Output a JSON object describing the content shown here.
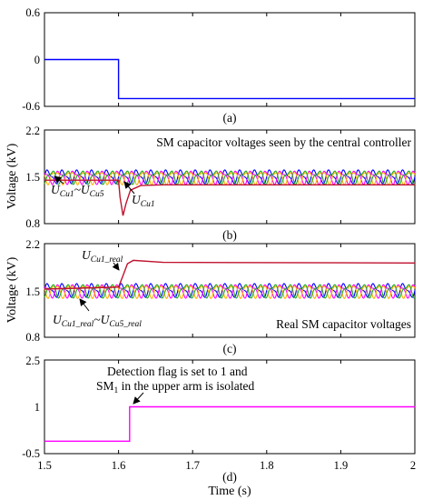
{
  "colors": {
    "flag_a": "#0000ff",
    "flag_d": "#ff00ff",
    "ucu1": "#c0122f",
    "ripple": [
      "#0000ff",
      "#ff00ff",
      "#ffb000",
      "#22aa22"
    ]
  },
  "chart_data": [
    {
      "type": "line",
      "panel_label": "(a)",
      "xlim": [
        1.5,
        2.0
      ],
      "ylim": [
        -0.6,
        0.6
      ],
      "yticks": [
        "0.6",
        "0",
        "-0.6"
      ],
      "series": [
        {
          "x": [
            1.5,
            1.6,
            1.6,
            2.0
          ],
          "y": [
            0,
            0,
            -0.5,
            -0.5
          ]
        }
      ]
    },
    {
      "type": "line",
      "panel_label": "(b)",
      "ylabel": "Voltage (kV)",
      "ylim": [
        0.8,
        2.2
      ],
      "yticks": [
        "2.2",
        "1.5",
        "0.8"
      ],
      "annotations": {
        "title": "SM capacitor voltages seen by the central controller",
        "range_main": "U",
        "range_sub1": "Cu1",
        "range_sep": "~",
        "range_main2": "U",
        "range_sub2": "Cu5",
        "single_main": "U",
        "single_sub": "Cu1"
      },
      "nominal": 1.5,
      "ripple_amplitude": 0.12,
      "ucu1": {
        "x": [
          1.5,
          1.6,
          1.602,
          1.606,
          1.61,
          1.616,
          1.63,
          1.66,
          2.0
        ],
        "y": [
          1.45,
          1.45,
          1.2,
          0.92,
          1.1,
          1.3,
          1.37,
          1.38,
          1.38
        ]
      }
    },
    {
      "type": "line",
      "panel_label": "(c)",
      "ylabel": "Voltage (kV)",
      "ylim": [
        0.8,
        2.2
      ],
      "yticks": [
        "2.2",
        "1.5",
        "0.8"
      ],
      "annotations": {
        "title": "Real SM capacitor voltages",
        "single_main": "U",
        "single_sub": "Cu1_real",
        "range_main": "U",
        "range_sub1": "Cu1_real",
        "range_sep": "~",
        "range_main2": "U",
        "range_sub2": "Cu5_real"
      },
      "nominal": 1.5,
      "ripple_amplitude": 0.12,
      "ucu1_real": {
        "x": [
          1.5,
          1.6,
          1.606,
          1.612,
          1.62,
          1.66,
          2.0
        ],
        "y": [
          1.52,
          1.55,
          1.72,
          1.9,
          1.95,
          1.92,
          1.91
        ]
      }
    },
    {
      "type": "line",
      "panel_label": "(d)",
      "xlabel": "Time (s)",
      "xlim": [
        1.5,
        2.0
      ],
      "xticks": [
        "1.5",
        "1.6",
        "1.7",
        "1.8",
        "1.9",
        "2"
      ],
      "ylim": [
        -0.5,
        2.5
      ],
      "yticks": [
        "2.5",
        "1",
        "-0.5"
      ],
      "annotations": {
        "line1": "Detection flag is set to 1 and",
        "line2_main": "SM",
        "line2_sub": "1",
        "line2_rest": " in the upper arm is isolated"
      },
      "series": [
        {
          "x": [
            1.5,
            1.615,
            1.615,
            2.0
          ],
          "y": [
            -0.1,
            -0.1,
            1,
            1
          ]
        }
      ]
    }
  ]
}
